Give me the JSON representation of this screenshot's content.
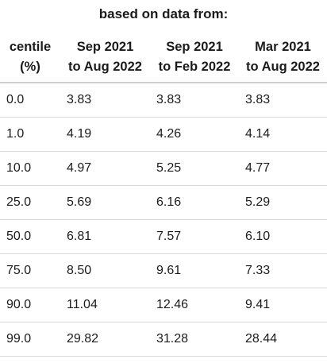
{
  "banner": "based on data from:",
  "table": {
    "headers": [
      [
        "centile",
        "(%)"
      ],
      [
        "Sep 2021",
        "to Aug 2022"
      ],
      [
        "Sep 2021",
        "to Feb 2022"
      ],
      [
        "Mar 2021",
        "to Aug 2022"
      ]
    ],
    "rows": [
      [
        "0.0",
        "3.83",
        "3.83",
        "3.83"
      ],
      [
        "1.0",
        "4.19",
        "4.26",
        "4.14"
      ],
      [
        "10.0",
        "4.97",
        "5.25",
        "4.77"
      ],
      [
        "25.0",
        "5.69",
        "6.16",
        "5.29"
      ],
      [
        "50.0",
        "6.81",
        "7.57",
        "6.10"
      ],
      [
        "75.0",
        "8.50",
        "9.61",
        "7.33"
      ],
      [
        "90.0",
        "11.04",
        "12.46",
        "9.41"
      ],
      [
        "99.0",
        "29.82",
        "31.28",
        "28.44"
      ]
    ]
  }
}
